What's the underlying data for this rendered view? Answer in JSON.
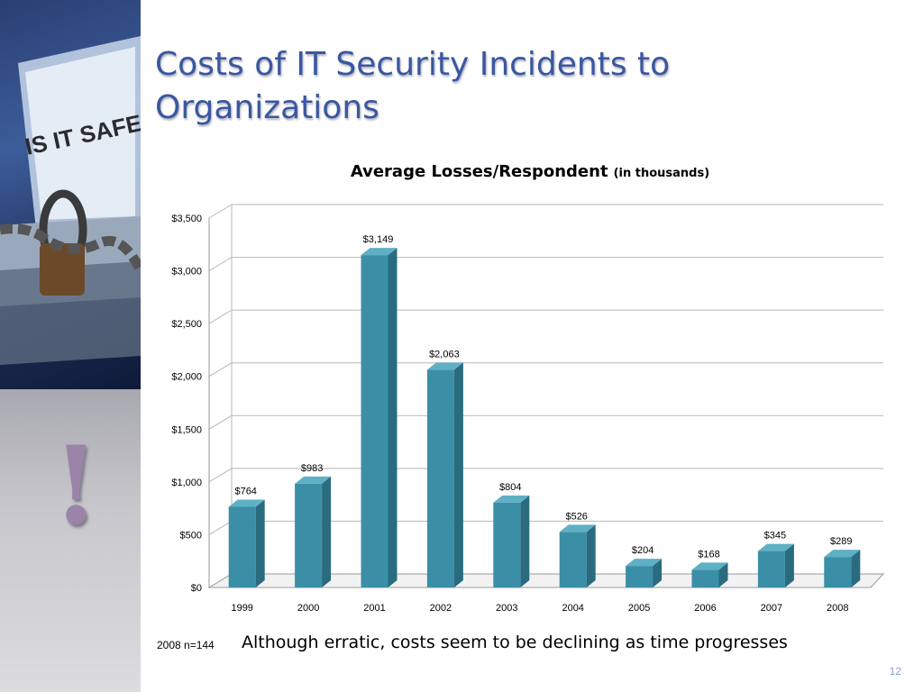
{
  "slide": {
    "title": "Costs of IT Security Incidents to Organizations",
    "footnote": "2008 n=144",
    "caption": "Although erratic, costs seem to be declining as time progresses",
    "slide_number": "12",
    "side_image_text": "IS IT SAFE?",
    "side_symbol": "!"
  },
  "colors": {
    "title": "#3a57a0",
    "bar_front": "#3a8fa6",
    "bar_side": "#2a6b80",
    "bar_top": "#5fb0c4"
  },
  "chart_data": {
    "type": "bar",
    "title": "Average Losses/Respondent",
    "subtitle": "(in thousands)",
    "categories": [
      "1999",
      "2000",
      "2001",
      "2002",
      "2003",
      "2004",
      "2005",
      "2006",
      "2007",
      "2008"
    ],
    "values": [
      764,
      983,
      3149,
      2063,
      804,
      526,
      204,
      168,
      345,
      289
    ],
    "data_labels": [
      "$764",
      "$983",
      "$3,149",
      "$2,063",
      "$804",
      "$526",
      "$204",
      "$168",
      "$345",
      "$289"
    ],
    "ylim": [
      0,
      3500
    ],
    "yticks": [
      0,
      500,
      1000,
      1500,
      2000,
      2500,
      3000,
      3500
    ],
    "ytick_labels": [
      "$0",
      "$500",
      "$1,000",
      "$1,500",
      "$2,000",
      "$2,500",
      "$3,000",
      "$3,500"
    ],
    "grid": true,
    "style": "3d-columns"
  }
}
